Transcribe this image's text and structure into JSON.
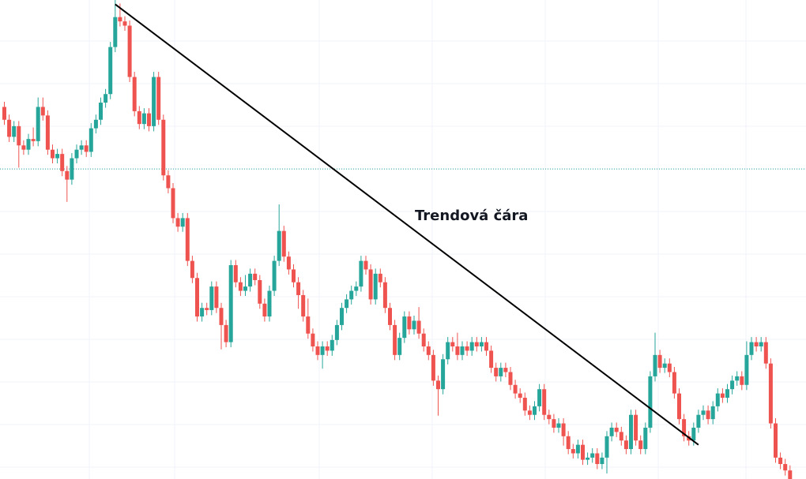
{
  "chart_data": {
    "type": "candlestick",
    "title": "",
    "xlabel": "",
    "ylabel": "",
    "grid": true,
    "ylim": [
      2.6,
      13.8
    ],
    "reference_price": 9.85,
    "colors": {
      "up": "#26a69a",
      "down": "#ef5350",
      "grid": "#f0f3fa",
      "trendline": "#000000",
      "reference": "#26a69a"
    },
    "closes": [
      11.0,
      10.6,
      10.85,
      10.4,
      10.3,
      10.55,
      10.5,
      11.3,
      11.1,
      10.3,
      10.1,
      10.2,
      9.8,
      9.6,
      10.1,
      10.3,
      10.4,
      10.25,
      10.8,
      11.0,
      11.4,
      11.6,
      12.7,
      13.4,
      13.3,
      13.2,
      12.0,
      11.2,
      10.9,
      11.15,
      10.85,
      12.0,
      11.0,
      9.7,
      9.4,
      8.7,
      8.5,
      8.7,
      7.7,
      7.3,
      6.4,
      6.6,
      6.55,
      7.1,
      6.6,
      6.2,
      5.8,
      7.6,
      7.2,
      7.0,
      7.1,
      7.4,
      7.25,
      6.7,
      6.4,
      7.0,
      7.7,
      8.4,
      7.8,
      7.5,
      7.2,
      6.9,
      6.4,
      6.0,
      5.7,
      5.5,
      5.7,
      5.6,
      5.85,
      6.2,
      6.6,
      6.8,
      7.0,
      7.1,
      7.7,
      7.5,
      6.8,
      7.4,
      7.2,
      6.6,
      6.2,
      5.5,
      5.9,
      6.4,
      6.1,
      6.3,
      6.0,
      5.7,
      5.5,
      4.9,
      4.7,
      5.4,
      5.8,
      5.7,
      5.5,
      5.7,
      5.6,
      5.8,
      5.7,
      5.8,
      5.6,
      5.2,
      5.0,
      5.2,
      5.1,
      4.8,
      4.6,
      4.5,
      4.2,
      4.1,
      4.3,
      4.7,
      4.1,
      4.0,
      3.8,
      3.9,
      3.6,
      3.3,
      3.2,
      3.4,
      3.05,
      3.1,
      3.2,
      2.95,
      3.1,
      3.6,
      3.8,
      3.7,
      3.5,
      3.3,
      4.1,
      3.5,
      3.3,
      3.8,
      5.0,
      5.5,
      5.2,
      5.3,
      5.1,
      4.6,
      4.0,
      3.6,
      3.5,
      3.8,
      4.1,
      4.2,
      4.0,
      4.3,
      4.6,
      4.5,
      4.7,
      4.9,
      5.0,
      4.8,
      5.5,
      5.8,
      5.7,
      5.8,
      5.3,
      3.9,
      3.1,
      2.95,
      2.8,
      2.6
    ],
    "extra_highs": [
      0,
      0,
      0,
      0,
      0,
      0,
      0.15,
      0.1,
      0.1,
      0,
      0,
      0,
      0,
      0,
      0,
      0,
      0,
      0,
      0,
      0,
      0,
      0,
      0,
      0.3,
      0.2,
      0,
      0,
      0,
      0,
      0,
      0,
      0,
      0,
      0,
      0,
      0,
      0,
      0,
      0,
      0,
      0,
      0,
      0,
      0,
      0,
      0,
      0,
      0,
      0,
      0,
      0.15,
      0,
      0,
      0,
      0,
      0,
      0,
      0.5,
      0,
      0,
      0,
      0,
      0,
      0.3,
      0,
      0,
      0,
      0,
      0,
      0,
      0,
      0,
      0,
      0,
      0,
      0,
      0,
      0,
      0,
      0,
      0,
      0,
      0,
      0,
      0,
      0,
      0.2,
      0,
      0,
      0,
      0,
      0,
      0,
      0,
      0.2,
      0,
      0,
      0,
      0,
      0,
      0,
      0,
      0,
      0,
      0,
      0,
      0,
      0,
      0,
      0,
      0,
      0,
      0,
      0,
      0,
      0,
      0,
      0,
      0,
      0,
      0,
      0,
      0,
      0,
      0,
      0,
      0,
      0,
      0,
      0,
      0,
      0,
      0,
      0,
      0,
      0.4,
      0,
      0,
      0,
      0,
      0,
      0,
      0,
      0,
      0,
      0,
      0,
      0,
      0,
      0,
      0,
      0,
      0,
      0,
      0.2,
      0,
      0,
      0,
      0,
      0,
      0,
      0,
      0,
      0,
      0,
      0,
      0
    ],
    "extra_lows": [
      0,
      0,
      0,
      0.4,
      0,
      0,
      0,
      0,
      0,
      0,
      0,
      0,
      0,
      0.4,
      0,
      0,
      0,
      0,
      0,
      0,
      0,
      0,
      0,
      0,
      0,
      0,
      0,
      0,
      0,
      0,
      0,
      0,
      0,
      0,
      0,
      0,
      0,
      0,
      0,
      0,
      0,
      0,
      0,
      0,
      0,
      0.45,
      0,
      0,
      0,
      0,
      0,
      0,
      0,
      0,
      0,
      0,
      0,
      0,
      0,
      0,
      0,
      0.2,
      0,
      0,
      0,
      0,
      0.2,
      0,
      0,
      0,
      0,
      0,
      0,
      0,
      0,
      0,
      0,
      0,
      0,
      0,
      0,
      0,
      0,
      0,
      0,
      0,
      0,
      0,
      0,
      0,
      0.5,
      0,
      0,
      0,
      0,
      0,
      0,
      0,
      0,
      0,
      0,
      0,
      0,
      0,
      0,
      0,
      0,
      0,
      0,
      0,
      0,
      0,
      0,
      0,
      0,
      0,
      0.1,
      0,
      0,
      0,
      0,
      0,
      0,
      0,
      0,
      0.25,
      0,
      0,
      0,
      0,
      0,
      0,
      0,
      0,
      0,
      0,
      0,
      0,
      0,
      0,
      0,
      0,
      0,
      0,
      0,
      0,
      0,
      0,
      0,
      0,
      0,
      0,
      0,
      0,
      0,
      0,
      0,
      0,
      0,
      0,
      0,
      0,
      0,
      0,
      0,
      0
    ],
    "trendline": {
      "start_index": 23,
      "start_price": 13.7,
      "end_index": 144,
      "end_price": 3.4
    },
    "annotation": "Trendová čára"
  }
}
